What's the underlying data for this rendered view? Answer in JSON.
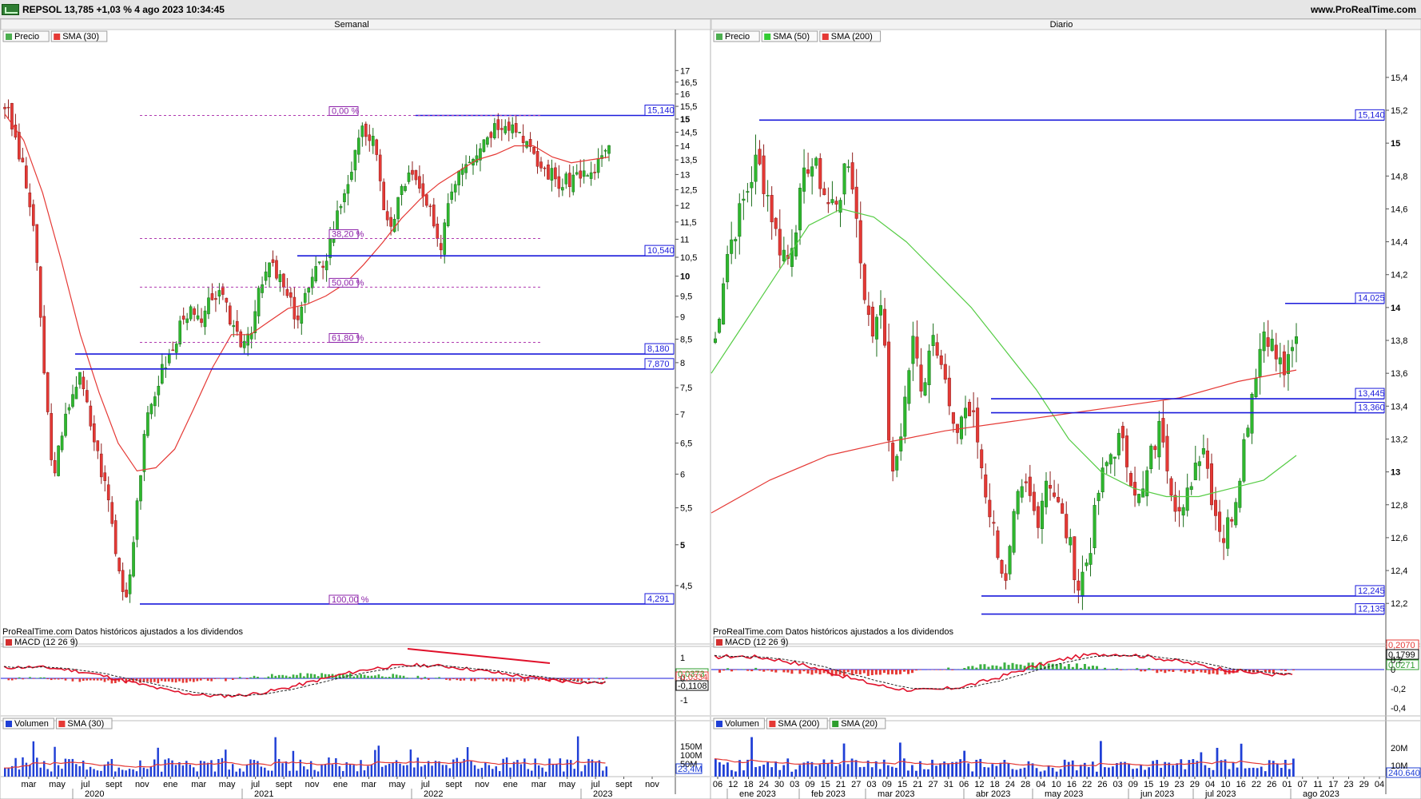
{
  "header": {
    "ticker_text": "REPSOL 13,785 +1,03 % 4 ago 2023 10:34:45",
    "site": "www.ProRealTime.com"
  },
  "panels": [
    {
      "title": "Semanal",
      "price_legend": [
        "Precio",
        "SMA (30)"
      ],
      "price_legend_colors": [
        "#4caf50",
        "#e53935"
      ],
      "footer": "ProRealTime.com  Datos históricos ajustados a los dividendos",
      "macd_label": "MACD (12 26 9)",
      "volume_legend": [
        "Volumen",
        "SMA (30)"
      ],
      "volume_legend_colors": [
        "#1f3fd6",
        "#e53935"
      ]
    },
    {
      "title": "Diario",
      "price_legend": [
        "Precio",
        "SMA (50)",
        "SMA (200)"
      ],
      "price_legend_colors": [
        "#4caf50",
        "#33cc33",
        "#e53935"
      ],
      "footer": "ProRealTime.com  Datos históricos ajustados a los dividendos",
      "macd_label": "MACD (12 26 9)",
      "volume_legend": [
        "Volumen",
        "SMA (200)",
        "SMA (20)"
      ],
      "volume_legend_colors": [
        "#1f3fd6",
        "#e53935",
        "#2e9e2e"
      ]
    }
  ],
  "chart_data": [
    {
      "type": "candlestick",
      "title": "Semanal",
      "scale": "log",
      "y_ticks": [
        "17",
        "16,5",
        "16",
        "15,5",
        "15",
        "14,5",
        "14",
        "13,5",
        "13",
        "12,5",
        "12",
        "11,5",
        "11",
        "10,5",
        "10",
        "9,5",
        "9",
        "8,5",
        "8",
        "7,5",
        "7",
        "6,5",
        "6",
        "5,5",
        "5",
        "4,5"
      ],
      "y_tick_values": [
        17,
        16.5,
        16,
        15.5,
        15,
        14.5,
        14,
        13.5,
        13,
        12.5,
        12,
        11.5,
        11,
        10.5,
        10,
        9.5,
        9,
        8.5,
        8,
        7.5,
        7,
        6.5,
        6,
        5.5,
        5,
        4.5
      ],
      "bold_ticks": [
        "15",
        "10",
        "5"
      ],
      "x_labels": [
        "mar",
        "may",
        "jul",
        "sept",
        "nov",
        "ene",
        "mar",
        "may",
        "jul",
        "sept",
        "nov",
        "ene",
        "mar",
        "may",
        "jul",
        "sept",
        "nov",
        "ene",
        "mar",
        "may",
        "jul",
        "sept",
        "nov"
      ],
      "year_labels": [
        "2020",
        "2021",
        "2022",
        "2023"
      ],
      "levels": [
        {
          "value": 15.14,
          "label": "15,140"
        },
        {
          "value": 10.54,
          "label": "10,540"
        },
        {
          "value": 8.18,
          "label": "8,180"
        },
        {
          "value": 7.87,
          "label": "7,870"
        },
        {
          "value": 4.291,
          "label": "4,291"
        }
      ],
      "fibonacci": [
        {
          "pct": "0,00 %",
          "value": 15.14
        },
        {
          "pct": "38,20 %",
          "value": 11.02
        },
        {
          "pct": "50,00 %",
          "value": 9.72
        },
        {
          "pct": "61,80 %",
          "value": 8.43
        },
        {
          "pct": "100,00 %",
          "value": 4.291
        }
      ],
      "close_series": [
        15.6,
        14.4,
        13.0,
        11.5,
        8.2,
        6.0,
        6.5,
        7.4,
        7.7,
        6.9,
        6.2,
        5.6,
        4.7,
        4.35,
        5.6,
        6.8,
        7.5,
        8.0,
        8.3,
        9.2,
        9.0,
        8.8,
        9.6,
        9.4,
        8.9,
        8.5,
        8.7,
        9.6,
        10.3,
        10.0,
        9.4,
        9.0,
        9.6,
        10.1,
        10.5,
        11.5,
        12.5,
        13.5,
        14.6,
        14.2,
        12.2,
        11.2,
        12.6,
        13.0,
        12.4,
        11.8,
        10.6,
        12.2,
        13.2,
        13.6,
        13.9,
        14.4,
        14.8,
        15.0,
        14.7,
        14.4,
        13.5,
        13.2,
        13.0,
        12.6,
        12.9,
        13.1,
        12.8,
        13.6,
        13.8
      ],
      "sma30_series": [
        15.2,
        14.2,
        12.4,
        10.4,
        8.6,
        7.4,
        6.5,
        6.05,
        6.1,
        6.4,
        7.1,
        7.9,
        8.6,
        8.6,
        8.9,
        9.2,
        9.3,
        9.5,
        9.8,
        10.3,
        10.9,
        11.6,
        12.2,
        12.7,
        13.1,
        13.5,
        13.7,
        14.0,
        14.0,
        13.6,
        13.4,
        13.5,
        13.6
      ],
      "macd_ticks": [
        "1",
        "0",
        "-1"
      ],
      "macd_values": [
        "0,0373",
        "-0,0334",
        "-0,1108"
      ],
      "volume_ticks": [
        "150M",
        "100M",
        "50M"
      ],
      "volume_value": "23,4M"
    },
    {
      "type": "candlestick",
      "title": "Diario",
      "scale": "linear",
      "y_ticks": [
        "15,4",
        "15,2",
        "15",
        "14,8",
        "14,6",
        "14,4",
        "14,2",
        "14",
        "13,8",
        "13,6",
        "13,4",
        "13,2",
        "13",
        "12,8",
        "12,6",
        "12,4",
        "12,2"
      ],
      "y_tick_values": [
        15.4,
        15.2,
        15,
        14.8,
        14.6,
        14.4,
        14.2,
        14,
        13.8,
        13.6,
        13.4,
        13.2,
        13,
        12.8,
        12.6,
        12.4,
        12.2
      ],
      "bold_ticks": [
        "15",
        "14",
        "13"
      ],
      "x_labels": [
        "06",
        "12",
        "18",
        "24",
        "30",
        "03",
        "09",
        "15",
        "21",
        "27",
        "03",
        "09",
        "15",
        "21",
        "27",
        "31",
        "06",
        "12",
        "18",
        "24",
        "28",
        "04",
        "10",
        "16",
        "22",
        "26",
        "03",
        "09",
        "15",
        "19",
        "23",
        "29",
        "04",
        "10",
        "16",
        "22",
        "26",
        "01",
        "07",
        "11",
        "17",
        "23",
        "29",
        "04"
      ],
      "month_labels": [
        "ene 2023",
        "feb 2023",
        "mar 2023",
        "abr 2023",
        "may 2023",
        "jun 2023",
        "jul 2023",
        "ago 2023"
      ],
      "levels": [
        {
          "value": 15.14,
          "label": "15,140"
        },
        {
          "value": 14.025,
          "label": "14,025"
        },
        {
          "value": 13.445,
          "label": "13,445"
        },
        {
          "value": 13.36,
          "label": "13,360"
        },
        {
          "value": 12.245,
          "label": "12,245"
        },
        {
          "value": 12.135,
          "label": "12,135"
        }
      ],
      "close_series": [
        13.8,
        14.3,
        14.5,
        14.7,
        14.9,
        14.7,
        14.4,
        14.3,
        14.6,
        14.9,
        14.8,
        14.6,
        14.7,
        14.9,
        14.3,
        13.8,
        14.1,
        12.9,
        13.3,
        13.8,
        13.5,
        13.9,
        13.6,
        13.2,
        13.4,
        13.3,
        12.9,
        12.6,
        12.3,
        12.8,
        12.9,
        12.7,
        13.0,
        12.8,
        12.6,
        12.3,
        12.5,
        12.9,
        13.1,
        13.2,
        13.0,
        12.8,
        13.1,
        13.3,
        12.9,
        12.7,
        13.0,
        13.2,
        12.8,
        12.6,
        12.8,
        13.2,
        13.6,
        13.9,
        13.7,
        13.6,
        13.8
      ],
      "sma50_series": [
        13.6,
        13.9,
        14.2,
        14.5,
        14.6,
        14.55,
        14.4,
        14.2,
        14.0,
        13.75,
        13.5,
        13.2,
        13.0,
        12.9,
        12.85,
        12.85,
        12.9,
        12.95,
        13.1
      ],
      "sma200_series": [
        12.75,
        12.95,
        13.1,
        13.18,
        13.25,
        13.3,
        13.35,
        13.4,
        13.45,
        13.55,
        13.62
      ],
      "macd_ticks": [
        "0,2",
        "0",
        "-0,2",
        "-0,4"
      ],
      "macd_values": [
        "0,2070",
        "0,1799",
        "0,0271"
      ],
      "volume_ticks": [
        "20M",
        "10M"
      ],
      "volume_value": "240.640"
    }
  ]
}
